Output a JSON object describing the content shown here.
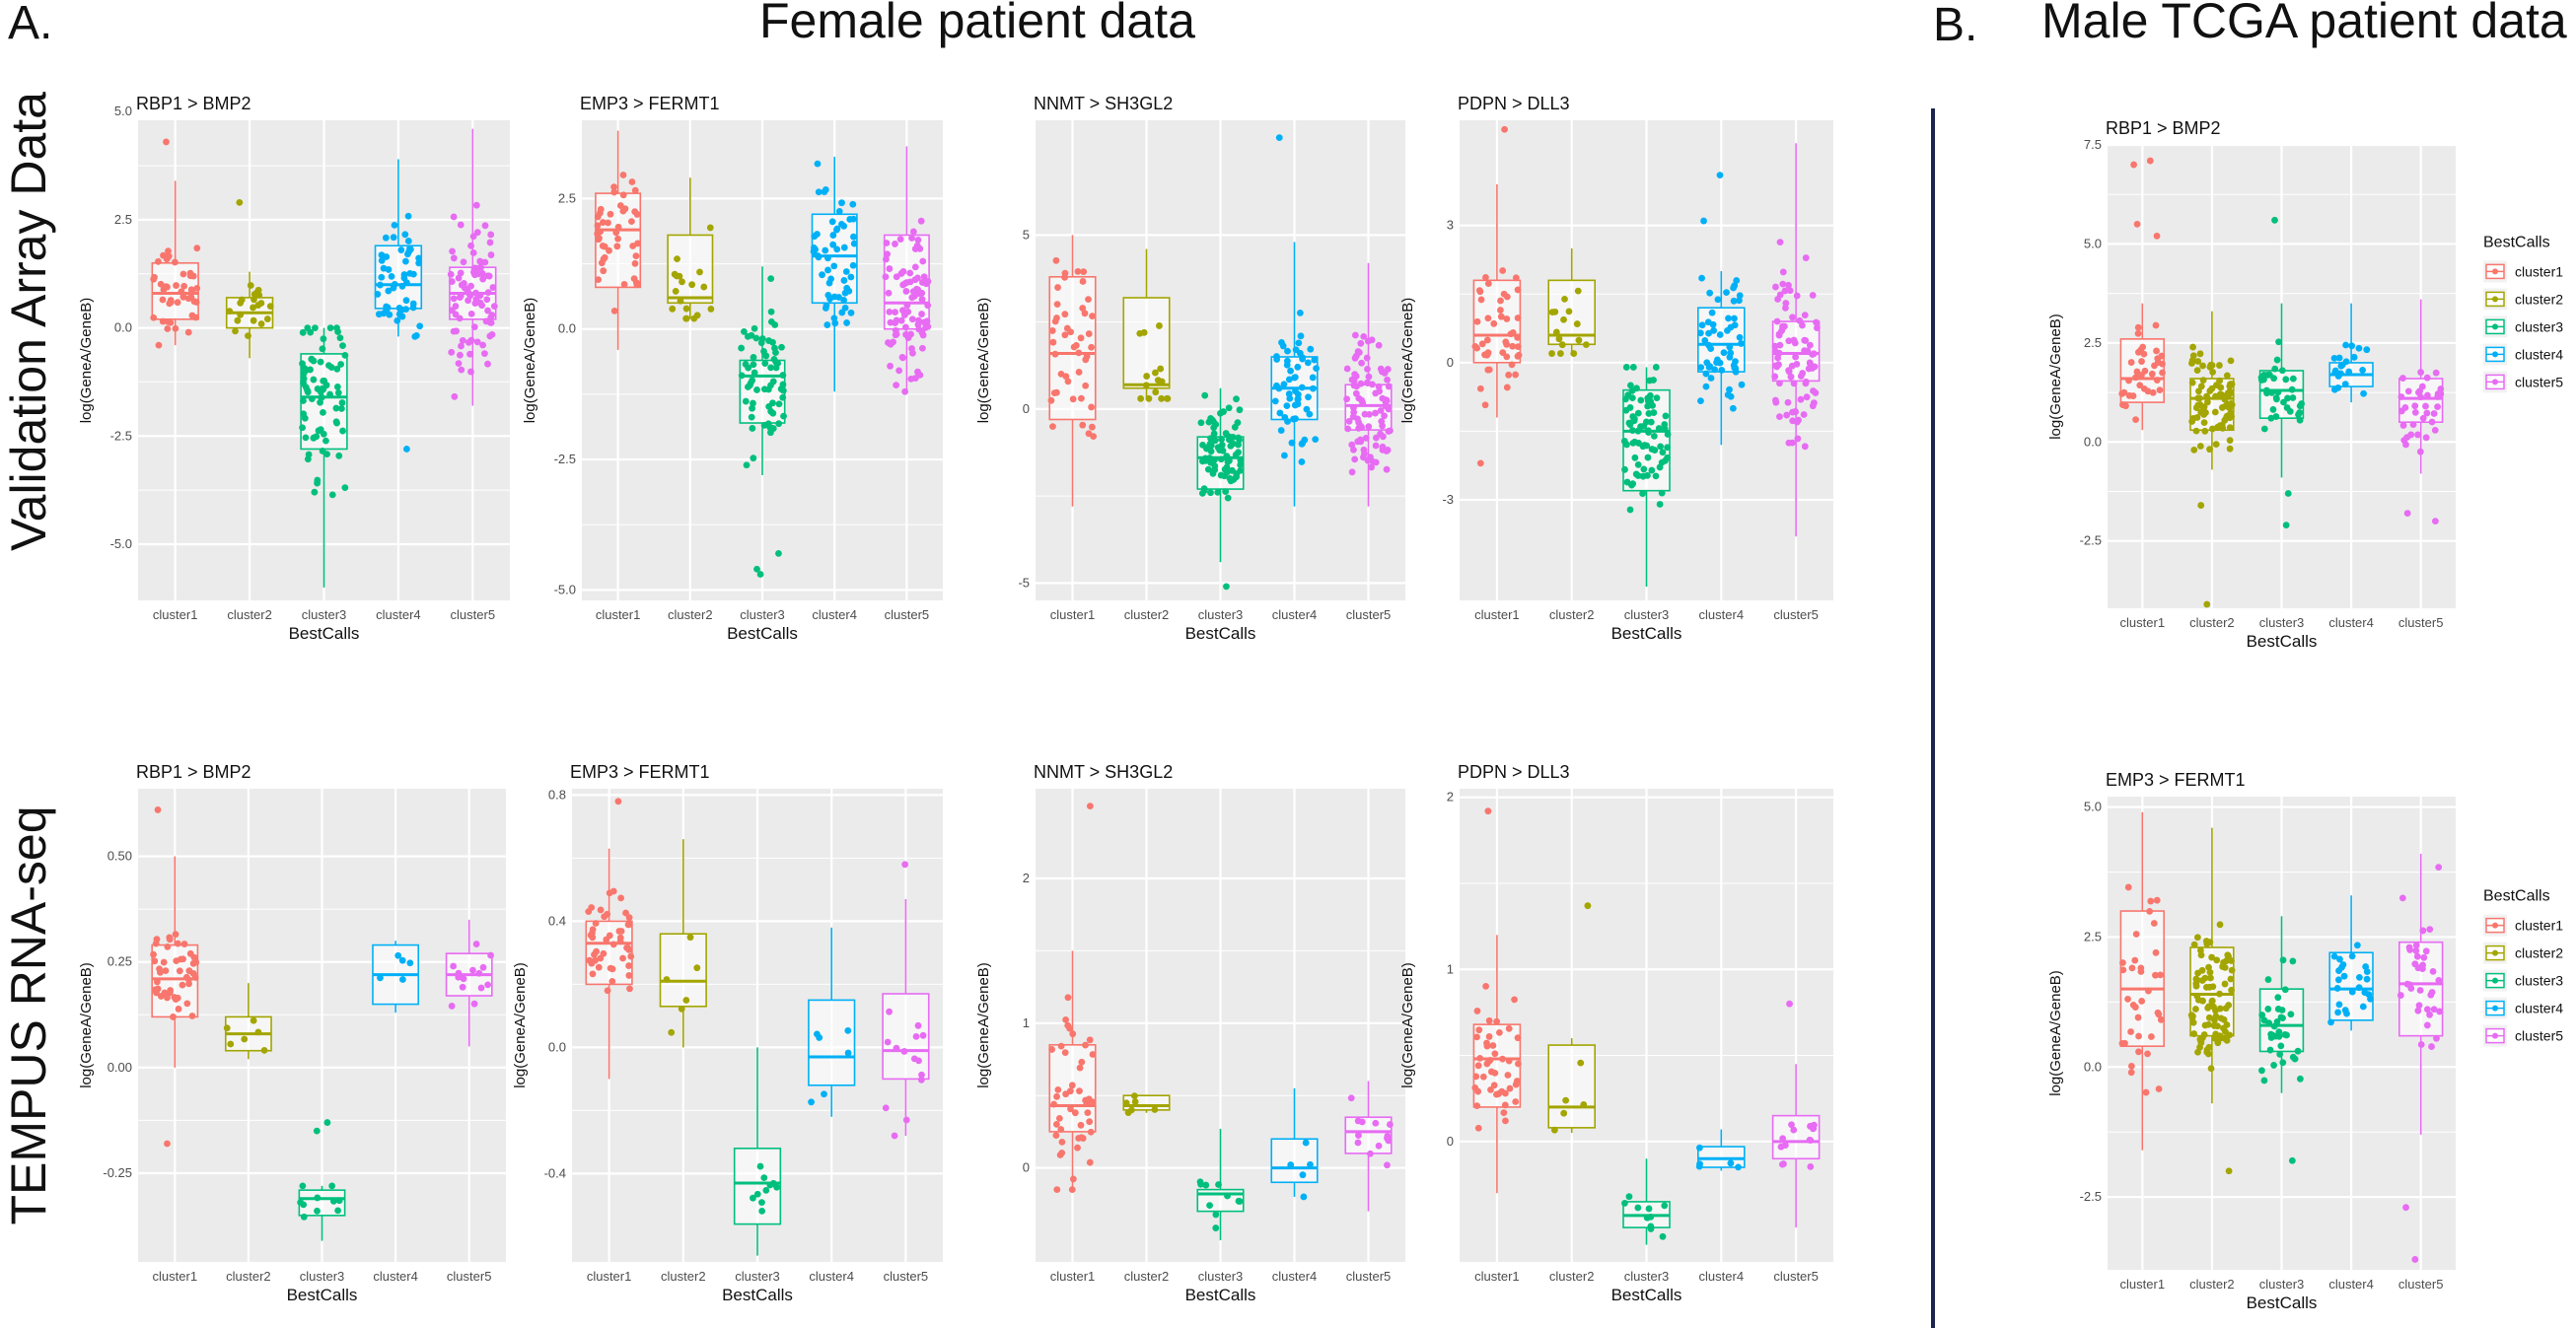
{
  "header": {
    "panel_a_label": "A.",
    "panel_a_title": "Female patient data",
    "panel_b_label": "B.",
    "panel_b_title": "Male TCGA patient data"
  },
  "rows": {
    "validation": "Validation Array Data",
    "tempus": "TEMPUS RNA-seq"
  },
  "colors": {
    "cluster1": "#F8766D",
    "cluster2": "#A3A500",
    "cluster3": "#00BF7D",
    "cluster4": "#00B0F6",
    "cluster5": "#E76BF3",
    "panel_bg": "#EBEBEB",
    "grid": "#FFFFFF",
    "divider": "#1B2350"
  },
  "chart_data": [
    {
      "type": "box",
      "title": "RBP1 > BMP2",
      "xlabel": "BestCalls",
      "ylabel": "log(GeneA/GeneB)",
      "categories": [
        "cluster1",
        "cluster2",
        "cluster3",
        "cluster4",
        "cluster5"
      ],
      "ylim": [
        -6.3,
        4.8
      ],
      "yticks": [
        -5.0,
        -2.5,
        0.0,
        2.5,
        5.0
      ],
      "ytick_labels": [
        "-5.0",
        "-2.5",
        "0.0",
        "2.5",
        "5.0"
      ],
      "boxes": [
        {
          "q1": 0.2,
          "median": 0.8,
          "q3": 1.5,
          "whisker_low": -0.4,
          "whisker_high": 3.4,
          "n": 45,
          "spread": 0.9,
          "outliers": [
            4.3
          ]
        },
        {
          "q1": 0.0,
          "median": 0.35,
          "q3": 0.7,
          "whisker_low": -0.7,
          "whisker_high": 1.3,
          "n": 20,
          "spread": 0.45,
          "outliers": [
            2.9
          ]
        },
        {
          "q1": -2.8,
          "median": -1.6,
          "q3": -0.6,
          "whisker_low": -6.0,
          "whisker_high": 0.0,
          "n": 75,
          "spread": 1.4,
          "outliers": []
        },
        {
          "q1": 0.45,
          "median": 1.0,
          "q3": 1.9,
          "whisker_low": -0.2,
          "whisker_high": 3.9,
          "n": 50,
          "spread": 1.0,
          "outliers": [
            -2.8
          ]
        },
        {
          "q1": 0.2,
          "median": 0.8,
          "q3": 1.4,
          "whisker_low": -1.8,
          "whisker_high": 4.6,
          "n": 85,
          "spread": 1.2,
          "outliers": []
        }
      ]
    },
    {
      "type": "box",
      "title": "EMP3 > FERMT1",
      "xlabel": "BestCalls",
      "ylabel": "log(GeneA/GeneB)",
      "categories": [
        "cluster1",
        "cluster2",
        "cluster3",
        "cluster4",
        "cluster5"
      ],
      "ylim": [
        -5.2,
        4.0
      ],
      "yticks": [
        -5.0,
        -2.5,
        0.0,
        2.5
      ],
      "ytick_labels": [
        "-5.0",
        "-2.5",
        "0.0",
        "2.5"
      ],
      "boxes": [
        {
          "q1": 0.8,
          "median": 1.9,
          "q3": 2.6,
          "whisker_low": -0.4,
          "whisker_high": 3.8,
          "n": 45,
          "spread": 0.9,
          "outliers": []
        },
        {
          "q1": 0.5,
          "median": 0.6,
          "q3": 1.8,
          "whisker_low": 0.2,
          "whisker_high": 2.9,
          "n": 18,
          "spread": 0.8,
          "outliers": []
        },
        {
          "q1": -1.8,
          "median": -0.9,
          "q3": -0.6,
          "whisker_low": -2.8,
          "whisker_high": 1.2,
          "n": 65,
          "spread": 1.1,
          "outliers": [
            -4.3,
            -4.6,
            -4.7
          ]
        },
        {
          "q1": 0.5,
          "median": 1.4,
          "q3": 2.2,
          "whisker_low": -1.2,
          "whisker_high": 3.3,
          "n": 55,
          "spread": 1.0,
          "outliers": []
        },
        {
          "q1": 0.0,
          "median": 0.5,
          "q3": 1.8,
          "whisker_low": -1.2,
          "whisker_high": 3.5,
          "n": 85,
          "spread": 1.1,
          "outliers": []
        }
      ]
    },
    {
      "type": "box",
      "title": "NNMT > SH3GL2",
      "xlabel": "BestCalls",
      "ylabel": "log(GeneA/GeneB)",
      "categories": [
        "cluster1",
        "cluster2",
        "cluster3",
        "cluster4",
        "cluster5"
      ],
      "ylim": [
        -5.5,
        8.3
      ],
      "yticks": [
        -5,
        0,
        5
      ],
      "ytick_labels": [
        "-5",
        "0",
        "5"
      ],
      "boxes": [
        {
          "q1": -0.3,
          "median": 1.6,
          "q3": 3.8,
          "whisker_low": -2.8,
          "whisker_high": 5.0,
          "n": 45,
          "spread": 2.0,
          "outliers": []
        },
        {
          "q1": 0.6,
          "median": 0.7,
          "q3": 3.2,
          "whisker_low": 0.3,
          "whisker_high": 4.6,
          "n": 15,
          "spread": 1.4,
          "outliers": []
        },
        {
          "q1": -2.3,
          "median": -1.4,
          "q3": -0.8,
          "whisker_low": -4.4,
          "whisker_high": 0.6,
          "n": 80,
          "spread": 1.0,
          "outliers": [
            -5.1
          ]
        },
        {
          "q1": -0.3,
          "median": 0.6,
          "q3": 1.5,
          "whisker_low": -2.8,
          "whisker_high": 4.8,
          "n": 55,
          "spread": 1.4,
          "outliers": [
            7.8
          ]
        },
        {
          "q1": -0.6,
          "median": 0.1,
          "q3": 0.7,
          "whisker_low": -2.8,
          "whisker_high": 4.2,
          "n": 90,
          "spread": 1.4,
          "outliers": []
        }
      ]
    },
    {
      "type": "box",
      "title": "PDPN > DLL3",
      "xlabel": "BestCalls",
      "ylabel": "log(GeneA/GeneB)",
      "categories": [
        "cluster1",
        "cluster2",
        "cluster3",
        "cluster4",
        "cluster5"
      ],
      "ylim": [
        -5.2,
        5.3
      ],
      "yticks": [
        -3,
        0,
        3
      ],
      "ytick_labels": [
        "-3",
        "0",
        "3"
      ],
      "boxes": [
        {
          "q1": 0.0,
          "median": 0.6,
          "q3": 1.8,
          "whisker_low": -1.2,
          "whisker_high": 3.9,
          "n": 45,
          "spread": 1.0,
          "outliers": [
            -2.2,
            5.1
          ]
        },
        {
          "q1": 0.4,
          "median": 0.6,
          "q3": 1.8,
          "whisker_low": 0.2,
          "whisker_high": 2.5,
          "n": 15,
          "spread": 0.7,
          "outliers": []
        },
        {
          "q1": -2.8,
          "median": -1.5,
          "q3": -0.6,
          "whisker_low": -4.9,
          "whisker_high": -0.1,
          "n": 80,
          "spread": 1.1,
          "outliers": []
        },
        {
          "q1": -0.2,
          "median": 0.4,
          "q3": 1.2,
          "whisker_low": -1.8,
          "whisker_high": 2.0,
          "n": 55,
          "spread": 0.9,
          "outliers": [
            3.1,
            4.1
          ]
        },
        {
          "q1": -0.4,
          "median": 0.2,
          "q3": 0.9,
          "whisker_low": -3.8,
          "whisker_high": 4.8,
          "n": 85,
          "spread": 1.4,
          "outliers": []
        }
      ]
    },
    {
      "type": "box",
      "title": "RBP1 > BMP2",
      "xlabel": "BestCalls",
      "ylabel": "log(GeneA/GeneB)",
      "categories": [
        "cluster1",
        "cluster2",
        "cluster3",
        "cluster4",
        "cluster5"
      ],
      "ylim": [
        -0.46,
        0.66
      ],
      "yticks": [
        -0.25,
        0.0,
        0.25,
        0.5
      ],
      "ytick_labels": [
        "-0.25",
        "0.00",
        "0.25",
        "0.50"
      ],
      "boxes": [
        {
          "q1": 0.12,
          "median": 0.21,
          "q3": 0.29,
          "whisker_low": 0.0,
          "whisker_high": 0.5,
          "n": 45,
          "spread": 0.09,
          "outliers": [
            0.61,
            -0.18
          ]
        },
        {
          "q1": 0.04,
          "median": 0.08,
          "q3": 0.12,
          "whisker_low": 0.02,
          "whisker_high": 0.2,
          "n": 6,
          "spread": 0.05,
          "outliers": []
        },
        {
          "q1": -0.35,
          "median": -0.31,
          "q3": -0.29,
          "whisker_low": -0.41,
          "whisker_high": -0.28,
          "n": 10,
          "spread": 0.04,
          "outliers": [
            -0.13,
            -0.15
          ]
        },
        {
          "q1": 0.15,
          "median": 0.22,
          "q3": 0.29,
          "whisker_low": 0.13,
          "whisker_high": 0.3,
          "n": 5,
          "spread": 0.07,
          "outliers": []
        },
        {
          "q1": 0.17,
          "median": 0.22,
          "q3": 0.27,
          "whisker_low": 0.05,
          "whisker_high": 0.35,
          "n": 14,
          "spread": 0.07,
          "outliers": []
        }
      ]
    },
    {
      "type": "box",
      "title": "EMP3 > FERMT1",
      "xlabel": "BestCalls",
      "ylabel": "log(GeneA/GeneB)",
      "categories": [
        "cluster1",
        "cluster2",
        "cluster3",
        "cluster4",
        "cluster5"
      ],
      "ylim": [
        -0.68,
        0.82
      ],
      "yticks": [
        -0.4,
        0.0,
        0.4,
        0.8
      ],
      "ytick_labels": [
        "-0.4",
        "0.0",
        "0.4",
        "0.8"
      ],
      "boxes": [
        {
          "q1": 0.2,
          "median": 0.33,
          "q3": 0.4,
          "whisker_low": -0.1,
          "whisker_high": 0.63,
          "n": 45,
          "spread": 0.12,
          "outliers": [
            0.78
          ]
        },
        {
          "q1": 0.13,
          "median": 0.21,
          "q3": 0.36,
          "whisker_low": 0.0,
          "whisker_high": 0.66,
          "n": 6,
          "spread": 0.14,
          "outliers": []
        },
        {
          "q1": -0.56,
          "median": -0.43,
          "q3": -0.32,
          "whisker_low": -0.66,
          "whisker_high": 0.0,
          "n": 10,
          "spread": 0.12,
          "outliers": []
        },
        {
          "q1": -0.12,
          "median": -0.03,
          "q3": 0.15,
          "whisker_low": -0.22,
          "whisker_high": 0.38,
          "n": 6,
          "spread": 0.15,
          "outliers": []
        },
        {
          "q1": -0.1,
          "median": -0.01,
          "q3": 0.17,
          "whisker_low": -0.28,
          "whisker_high": 0.47,
          "n": 14,
          "spread": 0.17,
          "outliers": [
            0.58
          ]
        }
      ]
    },
    {
      "type": "box",
      "title": "NNMT > SH3GL2",
      "xlabel": "BestCalls",
      "ylabel": "log(GeneA/GeneB)",
      "categories": [
        "cluster1",
        "cluster2",
        "cluster3",
        "cluster4",
        "cluster5"
      ],
      "ylim": [
        -0.65,
        2.62
      ],
      "yticks": [
        0,
        1,
        2
      ],
      "ytick_labels": [
        "0",
        "1",
        "2"
      ],
      "boxes": [
        {
          "q1": 0.25,
          "median": 0.43,
          "q3": 0.85,
          "whisker_low": -0.15,
          "whisker_high": 1.5,
          "n": 45,
          "spread": 0.45,
          "outliers": [
            2.5
          ]
        },
        {
          "q1": 0.4,
          "median": 0.43,
          "q3": 0.5,
          "whisker_low": 0.38,
          "whisker_high": 0.5,
          "n": 6,
          "spread": 0.05,
          "outliers": []
        },
        {
          "q1": -0.3,
          "median": -0.18,
          "q3": -0.15,
          "whisker_low": -0.5,
          "whisker_high": 0.27,
          "n": 10,
          "spread": 0.15,
          "outliers": []
        },
        {
          "q1": -0.1,
          "median": 0.0,
          "q3": 0.2,
          "whisker_low": -0.2,
          "whisker_high": 0.55,
          "n": 5,
          "spread": 0.15,
          "outliers": []
        },
        {
          "q1": 0.1,
          "median": 0.25,
          "q3": 0.35,
          "whisker_low": -0.3,
          "whisker_high": 0.6,
          "n": 14,
          "spread": 0.15,
          "outliers": []
        }
      ]
    },
    {
      "type": "box",
      "title": "PDPN > DLL3",
      "xlabel": "BestCalls",
      "ylabel": "log(GeneA/GeneB)",
      "categories": [
        "cluster1",
        "cluster2",
        "cluster3",
        "cluster4",
        "cluster5"
      ],
      "ylim": [
        -0.7,
        2.05
      ],
      "yticks": [
        0,
        1,
        2
      ],
      "ytick_labels": [
        "0",
        "1",
        "2"
      ],
      "boxes": [
        {
          "q1": 0.2,
          "median": 0.48,
          "q3": 0.68,
          "whisker_low": -0.3,
          "whisker_high": 1.2,
          "n": 45,
          "spread": 0.3,
          "outliers": [
            1.92
          ]
        },
        {
          "q1": 0.08,
          "median": 0.2,
          "q3": 0.56,
          "whisker_low": 0.05,
          "whisker_high": 0.6,
          "n": 5,
          "spread": 0.2,
          "outliers": [
            1.37
          ]
        },
        {
          "q1": -0.5,
          "median": -0.43,
          "q3": -0.35,
          "whisker_low": -0.6,
          "whisker_high": -0.1,
          "n": 10,
          "spread": 0.1,
          "outliers": []
        },
        {
          "q1": -0.15,
          "median": -0.1,
          "q3": -0.03,
          "whisker_low": -0.17,
          "whisker_high": 0.07,
          "n": 5,
          "spread": 0.06,
          "outliers": []
        },
        {
          "q1": -0.1,
          "median": 0.0,
          "q3": 0.15,
          "whisker_low": -0.5,
          "whisker_high": 0.45,
          "n": 14,
          "spread": 0.15,
          "outliers": [
            0.8
          ]
        }
      ]
    },
    {
      "type": "box",
      "title": "RBP1 > BMP2",
      "xlabel": "BestCalls",
      "ylabel": "log(GeneA/GeneB)",
      "legend_title": "BestCalls",
      "legend_placement": "right",
      "categories": [
        "cluster1",
        "cluster2",
        "cluster3",
        "cluster4",
        "cluster5"
      ],
      "ylim": [
        -4.2,
        7.5
      ],
      "yticks": [
        -2.5,
        0.0,
        2.5,
        5.0,
        7.5
      ],
      "ytick_labels": [
        "-2.5",
        "0.0",
        "2.5",
        "5.0",
        "7.5"
      ],
      "boxes": [
        {
          "q1": 1.0,
          "median": 1.6,
          "q3": 2.6,
          "whisker_low": 0.3,
          "whisker_high": 3.5,
          "n": 35,
          "spread": 0.8,
          "outliers": [
            5.2,
            5.5,
            7.0,
            7.1
          ]
        },
        {
          "q1": 0.3,
          "median": 1.1,
          "q3": 1.6,
          "whisker_low": -0.7,
          "whisker_high": 3.3,
          "n": 85,
          "spread": 0.8,
          "outliers": [
            -1.6,
            -4.1
          ]
        },
        {
          "q1": 0.6,
          "median": 1.3,
          "q3": 1.8,
          "whisker_low": -0.9,
          "whisker_high": 3.5,
          "n": 35,
          "spread": 0.8,
          "outliers": [
            5.6,
            -1.3,
            -2.1
          ]
        },
        {
          "q1": 1.4,
          "median": 1.7,
          "q3": 2.0,
          "whisker_low": 1.0,
          "whisker_high": 3.5,
          "n": 20,
          "spread": 0.5,
          "outliers": []
        },
        {
          "q1": 0.5,
          "median": 1.1,
          "q3": 1.6,
          "whisker_low": -0.8,
          "whisker_high": 3.6,
          "n": 35,
          "spread": 0.8,
          "outliers": [
            -1.8,
            -2.0
          ]
        }
      ]
    },
    {
      "type": "box",
      "title": "EMP3 > FERMT1",
      "xlabel": "BestCalls",
      "ylabel": "log(GeneA/GeneB)",
      "legend_title": "BestCalls",
      "legend_placement": "right",
      "categories": [
        "cluster1",
        "cluster2",
        "cluster3",
        "cluster4",
        "cluster5"
      ],
      "ylim": [
        -3.9,
        5.2
      ],
      "yticks": [
        -2.5,
        0.0,
        2.5,
        5.0
      ],
      "ytick_labels": [
        "-2.5",
        "0.0",
        "2.5",
        "5.0"
      ],
      "boxes": [
        {
          "q1": 0.4,
          "median": 1.5,
          "q3": 3.0,
          "whisker_low": -1.6,
          "whisker_high": 4.9,
          "n": 35,
          "spread": 1.3,
          "outliers": []
        },
        {
          "q1": 0.6,
          "median": 1.4,
          "q3": 2.3,
          "whisker_low": -0.7,
          "whisker_high": 4.6,
          "n": 85,
          "spread": 1.0,
          "outliers": [
            -2.0
          ]
        },
        {
          "q1": 0.3,
          "median": 0.8,
          "q3": 1.5,
          "whisker_low": -0.5,
          "whisker_high": 2.9,
          "n": 35,
          "spread": 0.8,
          "outliers": [
            -1.8
          ]
        },
        {
          "q1": 0.9,
          "median": 1.5,
          "q3": 2.2,
          "whisker_low": 0.7,
          "whisker_high": 3.3,
          "n": 25,
          "spread": 0.6,
          "outliers": []
        },
        {
          "q1": 0.6,
          "median": 1.6,
          "q3": 2.4,
          "whisker_low": -1.3,
          "whisker_high": 4.1,
          "n": 35,
          "spread": 1.2,
          "outliers": [
            -2.7,
            -3.7
          ]
        }
      ]
    }
  ]
}
